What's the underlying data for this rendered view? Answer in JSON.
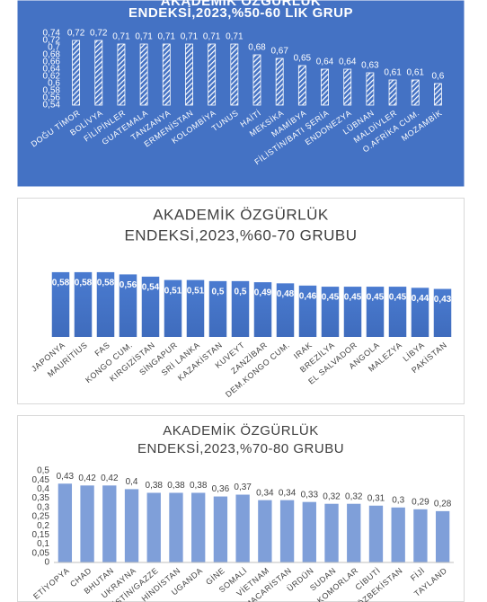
{
  "chart_data": [
    {
      "type": "bar",
      "title": [
        "AKADEMİK ÖZGÜRLÜK",
        "ENDEKSİ,2023,%50-60 LIK GRUP"
      ],
      "categories": [
        "DOĞU TİMOR",
        "BOLİVYA",
        "FİLİPİNLER",
        "GUATEMALA",
        "TANZANYA",
        "ERMENİSTAN",
        "KOLOMBİYA",
        "TUNUS",
        "HAİTİ",
        "MEKSİKA",
        "MAMİBYA",
        "FİLİSTİN/BATI ŞERİA",
        "ENDONEZYA",
        "LÜBNAN",
        "MALDİVLER",
        "O.AFRİKA CUM.",
        "MOZAMBİK"
      ],
      "values": [
        0.72,
        0.72,
        0.71,
        0.71,
        0.71,
        0.71,
        0.71,
        0.71,
        0.68,
        0.67,
        0.65,
        0.64,
        0.64,
        0.63,
        0.61,
        0.61,
        0.6
      ],
      "value_labels": [
        "0,72",
        "0,72",
        "0,71",
        "0,71",
        "0,71",
        "0,71",
        "0,71",
        "0,71",
        "0,68",
        "0,67",
        "0,65",
        "0,64",
        "0,64",
        "0,63",
        "0,61",
        "0,61",
        "0,6"
      ],
      "ylim": [
        0.54,
        0.74
      ],
      "yticks": [
        {
          "value": 0.54,
          "label": "0,54"
        },
        {
          "value": 0.56,
          "label": "0,56"
        },
        {
          "value": 0.58,
          "label": "0,58"
        },
        {
          "value": 0.6,
          "label": "0,6"
        },
        {
          "value": 0.62,
          "label": "0,62"
        },
        {
          "value": 0.64,
          "label": "0,64"
        },
        {
          "value": 0.66,
          "label": "0,66"
        },
        {
          "value": 0.68,
          "label": "0,68"
        },
        {
          "value": 0.7,
          "label": "0,7"
        },
        {
          "value": 0.72,
          "label": "0,72"
        },
        {
          "value": 0.74,
          "label": "0,74"
        }
      ],
      "color": "#ffffff",
      "hatch": true,
      "background": "#4472c4",
      "data_labels": "outside_end"
    },
    {
      "type": "bar",
      "title": [
        "AKADEMİK ÖZGÜRLÜK",
        "ENDEKSİ,2023,%60-70 GRUBU"
      ],
      "categories": [
        "JAPONYA",
        "MAURİTİUS",
        "FAS",
        "KONGO CUM.",
        "KIRGIZİSTAN",
        "SİNGAPUR",
        "SRİ LANKA",
        "KAZAKİSTAN",
        "KUVEYT",
        "ZANZİBAR",
        "DEM.KONGO CUM.",
        "IRAK",
        "BREZİLYA",
        "EL SALVADOR",
        "ANGOLA",
        "MALEZYA",
        "LİBYA",
        "PAKİSTAN"
      ],
      "values": [
        0.58,
        0.58,
        0.58,
        0.56,
        0.54,
        0.51,
        0.51,
        0.5,
        0.5,
        0.49,
        0.48,
        0.46,
        0.45,
        0.45,
        0.45,
        0.45,
        0.44,
        0.43
      ],
      "value_labels": [
        "0,58",
        "0,58",
        "0,58",
        "0,56",
        "0,54",
        "0,51",
        "0,51",
        "0,5",
        "0,5",
        "0,49",
        "0,48",
        "0,46",
        "0,45",
        "0,45",
        "0,45",
        "0,45",
        "0,44",
        "0,43"
      ],
      "ylim": [
        0,
        0.7
      ],
      "color": "#4472c4",
      "hatch": false,
      "background": "#ffffff",
      "data_labels": "inside_end"
    },
    {
      "type": "bar",
      "title": [
        "AKADEMİK ÖZGÜRLÜK",
        "ENDEKSİ,2023,%70-80 GRUBU"
      ],
      "categories": [
        "ETİYOPYA",
        "CHAD",
        "BHUTAN",
        "UKRAYNA",
        "FİLİSTİN/GAZZE",
        "HİNDİSTAN",
        "UGANDA",
        "GİNE",
        "SOMALİ",
        "VİETNAM",
        "MACARİSTAN",
        "ÜRDÜN",
        "SUDAN",
        "KOMORLAR",
        "CİBUTİ",
        "ÖZBEKİSTAN",
        "FİJİ",
        "TAYLAND"
      ],
      "values": [
        0.43,
        0.42,
        0.42,
        0.4,
        0.38,
        0.38,
        0.38,
        0.36,
        0.37,
        0.34,
        0.34,
        0.33,
        0.32,
        0.32,
        0.31,
        0.3,
        0.29,
        0.28
      ],
      "value_labels": [
        "0,43",
        "0,42",
        "0,42",
        "0,4",
        "0,38",
        "0,38",
        "0,38",
        "0,36",
        "0,37",
        "0,34",
        "0,34",
        "0,33",
        "0,32",
        "0,32",
        "0,31",
        "0,3",
        "0,29",
        "0,28"
      ],
      "ylim": [
        0,
        0.5
      ],
      "yticks": [
        0,
        {
          "value": 0.05,
          "label": "0,05"
        },
        {
          "value": 0.1,
          "label": "0,1"
        },
        {
          "value": 0.15,
          "label": "0,15"
        },
        {
          "value": 0.2,
          "label": "0,2"
        },
        {
          "value": 0.25,
          "label": "0,25"
        },
        {
          "value": 0.3,
          "label": "0,3"
        },
        {
          "value": 0.35,
          "label": "0,35"
        },
        {
          "value": 0.4,
          "label": "0,4"
        },
        {
          "value": 0.45,
          "label": "0,45"
        },
        {
          "value": 0.5,
          "label": "0,5"
        }
      ],
      "color": "#7f9fd9",
      "hatch": false,
      "background": "#ffffff",
      "data_labels": "outside_end"
    }
  ]
}
